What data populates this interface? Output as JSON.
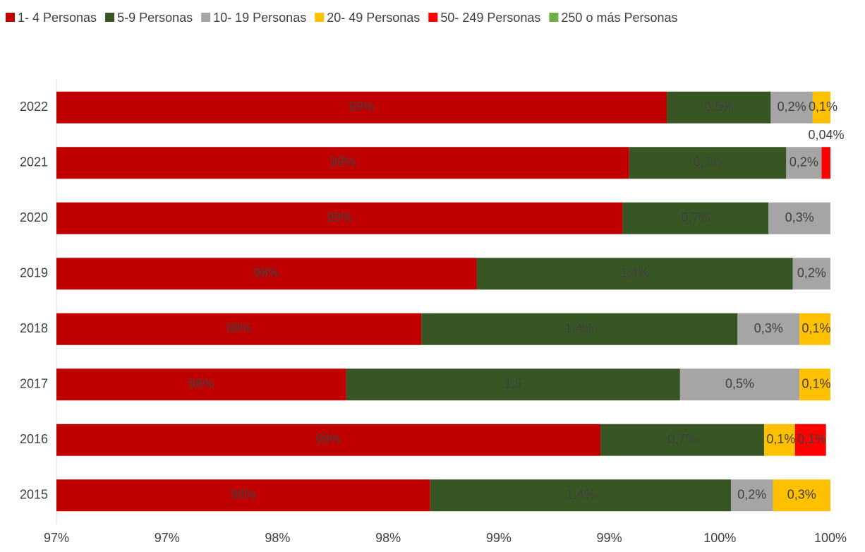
{
  "chart_data": {
    "type": "bar",
    "orientation": "horizontal",
    "stacked": true,
    "categories": [
      "2022",
      "2021",
      "2020",
      "2019",
      "2018",
      "2017",
      "2016",
      "2015"
    ],
    "series": [
      {
        "name": "1- 4 Personas",
        "color": "#c00000",
        "values": [
          99.26,
          99.09,
          99.06,
          98.4,
          98.15,
          97.81,
          98.96,
          98.19
        ],
        "value_labels": [
          "99%",
          "99%",
          "99%",
          "98%",
          "98%",
          "98%",
          "99%",
          "98%"
        ]
      },
      {
        "name": "5-9 Personas",
        "color": "#375623",
        "values": [
          0.47,
          0.71,
          0.66,
          1.43,
          1.43,
          1.51,
          0.74,
          1.36
        ],
        "value_labels": [
          "0,5%",
          "0,7%",
          "0,7%",
          "1,4%",
          "1,4%",
          "1,5",
          "0,7%",
          "1,4%"
        ]
      },
      {
        "name": "10- 19 Personas",
        "color": "#a5a5a5",
        "values": [
          0.19,
          0.16,
          0.28,
          0.17,
          0.28,
          0.54,
          null,
          0.19
        ],
        "value_labels": [
          "0,2%",
          "0,2%",
          "0,3%",
          "0,2%",
          "0,3%",
          "0,5%",
          null,
          "0,2%"
        ]
      },
      {
        "name": "20- 49 Personas",
        "color": "#ffc000",
        "values": [
          0.08,
          null,
          null,
          null,
          0.14,
          0.14,
          0.14,
          0.26
        ],
        "value_labels": [
          "0,1%",
          null,
          null,
          null,
          "0,1%",
          "0,1%",
          "0,1%",
          "0,3%"
        ]
      },
      {
        "name": "50- 249 Personas",
        "color": "#ff0000",
        "values": [
          null,
          0.04,
          null,
          null,
          null,
          null,
          0.14,
          null
        ],
        "value_labels": [
          null,
          "0,04%",
          null,
          null,
          null,
          null,
          "0,1%",
          null
        ]
      },
      {
        "name": "250 o más Personas",
        "color": "#70ad47",
        "values": [
          null,
          null,
          null,
          null,
          null,
          null,
          null,
          null
        ]
      }
    ],
    "xlim": [
      96.5,
      100
    ],
    "xticks": [
      {
        "value": 96.5,
        "label": "97%"
      },
      {
        "value": 97,
        "label": "97%"
      },
      {
        "value": 97.5,
        "label": "98%"
      },
      {
        "value": 98,
        "label": "98%"
      },
      {
        "value": 98.5,
        "label": "99%"
      },
      {
        "value": 99,
        "label": "99%"
      },
      {
        "value": 99.5,
        "label": "100%"
      },
      {
        "value": 100,
        "label": "100%"
      }
    ],
    "legend": "top"
  }
}
